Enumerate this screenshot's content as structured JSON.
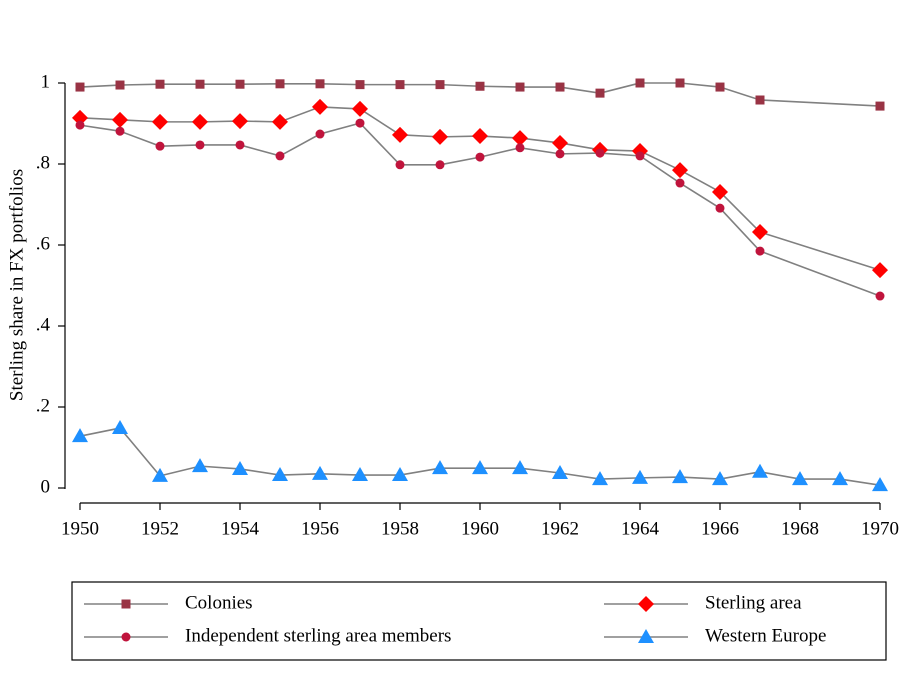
{
  "chart_data": {
    "type": "line",
    "ylabel": "Sterling share in FX portfolios",
    "xlim": [
      1950,
      1970
    ],
    "xticks": [
      1950,
      1952,
      1954,
      1956,
      1958,
      1960,
      1962,
      1964,
      1966,
      1968,
      1970
    ],
    "ylim": [
      0,
      1
    ],
    "yticks": [
      0,
      {
        "value": 0.2,
        "label": ".2"
      },
      {
        "value": 0.4,
        "label": ".4"
      },
      {
        "value": 0.6,
        "label": ".6"
      },
      {
        "value": 0.8,
        "label": ".8"
      },
      1
    ],
    "line_color": "#808080",
    "series": [
      {
        "name": "Colonies",
        "color": "#993344",
        "marker": "square",
        "x": [
          1950,
          1951,
          1952,
          1953,
          1954,
          1955,
          1956,
          1957,
          1958,
          1959,
          1960,
          1961,
          1962,
          1963,
          1964,
          1965,
          1966,
          1967,
          1970
        ],
        "values": [
          0.99,
          0.995,
          0.997,
          0.997,
          0.997,
          0.998,
          0.998,
          0.996,
          0.996,
          0.996,
          0.992,
          0.99,
          0.99,
          0.975,
          1.0,
          1.0,
          0.99,
          0.958,
          0.943
        ]
      },
      {
        "name": "Sterling area",
        "color": "#ff0000",
        "marker": "diamond",
        "x": [
          1950,
          1951,
          1952,
          1953,
          1954,
          1955,
          1956,
          1957,
          1958,
          1959,
          1960,
          1961,
          1962,
          1963,
          1964,
          1965,
          1966,
          1967,
          1970
        ],
        "values": [
          0.914,
          0.909,
          0.904,
          0.904,
          0.906,
          0.904,
          0.941,
          0.936,
          0.872,
          0.867,
          0.869,
          0.864,
          0.852,
          0.835,
          0.832,
          0.785,
          0.731,
          0.632,
          0.538
        ]
      },
      {
        "name": "Independent sterling area members",
        "color": "#c0143c",
        "marker": "circle",
        "x": [
          1950,
          1951,
          1952,
          1953,
          1954,
          1955,
          1956,
          1957,
          1958,
          1959,
          1960,
          1961,
          1962,
          1963,
          1964,
          1965,
          1966,
          1967,
          1970
        ],
        "values": [
          0.896,
          0.881,
          0.844,
          0.847,
          0.847,
          0.82,
          0.874,
          0.901,
          0.798,
          0.798,
          0.817,
          0.84,
          0.825,
          0.827,
          0.82,
          0.753,
          0.691,
          0.585,
          0.474
        ]
      },
      {
        "name": "Western Europe",
        "color": "#1e90ff",
        "marker": "triangle",
        "x": [
          1950,
          1951,
          1952,
          1953,
          1954,
          1955,
          1956,
          1957,
          1958,
          1959,
          1960,
          1961,
          1962,
          1963,
          1964,
          1965,
          1966,
          1967,
          1968,
          1969,
          1970
        ],
        "values": [
          0.128,
          0.148,
          0.03,
          0.054,
          0.047,
          0.032,
          0.035,
          0.032,
          0.032,
          0.049,
          0.049,
          0.049,
          0.037,
          0.022,
          0.025,
          0.027,
          0.022,
          0.04,
          0.022,
          0.022,
          0.007
        ]
      }
    ]
  }
}
